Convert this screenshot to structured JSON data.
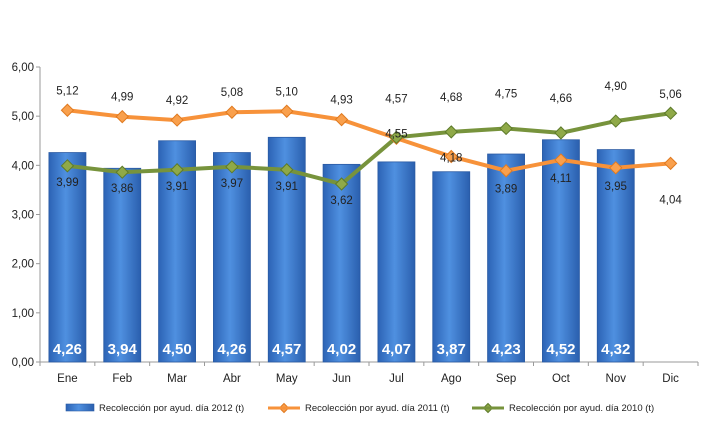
{
  "chart_data": {
    "type": "bar",
    "title": "",
    "xlabel": "",
    "ylabel": "",
    "ylim": [
      0,
      6
    ],
    "y_ticks": [
      "0,00",
      "1,00",
      "2,00",
      "3,00",
      "4,00",
      "5,00",
      "6,00"
    ],
    "categories": [
      "Ene",
      "Feb",
      "Mar",
      "Abr",
      "May",
      "Jun",
      "Jul",
      "Ago",
      "Sep",
      "Oct",
      "Nov",
      "Dic"
    ],
    "legend_position": "bottom",
    "grid": false,
    "series": [
      {
        "name": "Recolección por ayud. día 2012 (t)",
        "type": "bar",
        "color": "#3f7fd0",
        "values": [
          4.26,
          3.94,
          4.5,
          4.26,
          4.57,
          4.02,
          4.07,
          3.87,
          4.23,
          4.52,
          4.32,
          null
        ],
        "labels": [
          "4,26",
          "3,94",
          "4,50",
          "4,26",
          "4,57",
          "4,02",
          "4,07",
          "3,87",
          "4,23",
          "4,52",
          "4,32",
          ""
        ]
      },
      {
        "name": "Recolección por ayud. día 2011 (t)",
        "type": "line",
        "color": "#f7923a",
        "values": [
          5.12,
          4.99,
          4.92,
          5.08,
          5.1,
          4.93,
          4.55,
          4.18,
          3.89,
          4.11,
          3.95,
          4.04
        ],
        "labels": [
          "5,12",
          "4,99",
          "4,92",
          "5,08",
          "5,10",
          "4,93",
          "4,55",
          "4,18",
          "3,89",
          "4,11",
          "3,95",
          "4,04"
        ]
      },
      {
        "name": "Recolección por ayud. día 2010 (t)",
        "type": "line",
        "color": "#77933c",
        "values": [
          3.99,
          3.86,
          3.91,
          3.97,
          3.91,
          3.62,
          4.57,
          4.68,
          4.75,
          4.66,
          4.9,
          5.06
        ],
        "labels": [
          "3,99",
          "3,86",
          "3,91",
          "3,97",
          "3,91",
          "3,62",
          "4,57",
          "4,68",
          "4,75",
          "4,66",
          "4,90",
          "5,06"
        ]
      }
    ]
  }
}
